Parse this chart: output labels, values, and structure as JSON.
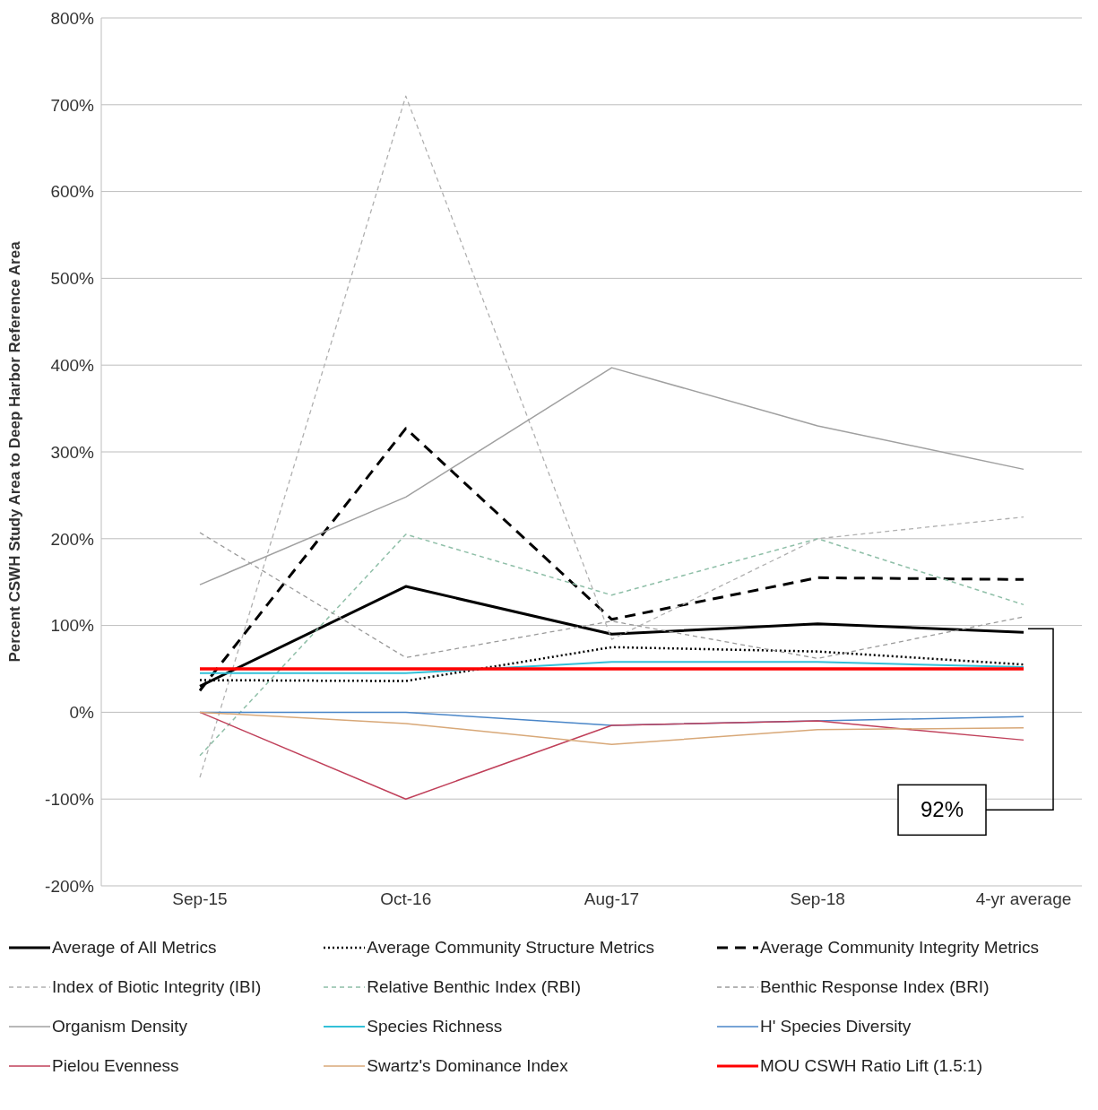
{
  "chart_data": {
    "type": "line",
    "ylabel": "Percent CSWH Study Area to Deep Harbor Reference Area",
    "categories": [
      "Sep-15",
      "Oct-16",
      "Aug-17",
      "Sep-18",
      "4-yr average"
    ],
    "ylim": [
      -200,
      800
    ],
    "yticks": [
      {
        "value": -200,
        "label": "-200%"
      },
      {
        "value": -100,
        "label": "-100%"
      },
      {
        "value": 0,
        "label": "0%"
      },
      {
        "value": 100,
        "label": "100%"
      },
      {
        "value": 200,
        "label": "200%"
      },
      {
        "value": 300,
        "label": "300%"
      },
      {
        "value": 400,
        "label": "400%"
      },
      {
        "value": 500,
        "label": "500%"
      },
      {
        "value": 600,
        "label": "600%"
      },
      {
        "value": 700,
        "label": "700%"
      },
      {
        "value": 800,
        "label": "800%"
      }
    ],
    "grid": "y",
    "legend": "bottom",
    "marker": "none",
    "series": [
      {
        "name": "Average of All Metrics",
        "color": "#000000",
        "line_style": "solid",
        "values": [
          30,
          145,
          90,
          102,
          92
        ]
      },
      {
        "name": "Average Community Structure Metrics",
        "color": "#000000",
        "line_style": "dotted",
        "values": [
          37,
          36,
          75,
          70,
          55
        ]
      },
      {
        "name": "Average Community Integrity Metrics",
        "color": "#000000",
        "line_style": "dashed",
        "values": [
          25,
          327,
          107,
          155,
          153
        ]
      },
      {
        "name": "Index of Biotic Integrity (IBI)",
        "color": "#b0b0b0",
        "line_style": "dashed",
        "values": [
          -75,
          710,
          84,
          200,
          225
        ]
      },
      {
        "name": "Relative Benthic Index (RBI)",
        "color": "#8fbfa8",
        "line_style": "dashed",
        "values": [
          -50,
          205,
          135,
          200,
          124
        ]
      },
      {
        "name": "Benthic Response Index (BRI)",
        "color": "#9a9a9a",
        "line_style": "dashed",
        "values": [
          207,
          63,
          105,
          62,
          110
        ]
      },
      {
        "name": "Organism Density",
        "color": "#a0a0a0",
        "line_style": "solid",
        "values": [
          147,
          248,
          397,
          330,
          280
        ]
      },
      {
        "name": "Species Richness",
        "color": "#33c0d8",
        "line_style": "solid",
        "values": [
          45,
          45,
          58,
          58,
          52
        ]
      },
      {
        "name": "H' Species Diversity",
        "color": "#4a86c8",
        "line_style": "solid",
        "values": [
          0,
          0,
          -15,
          -10,
          -5
        ]
      },
      {
        "name": "Pielou Evenness",
        "color": "#c0405a",
        "line_style": "solid",
        "values": [
          0,
          -100,
          -15,
          -10,
          -32
        ]
      },
      {
        "name": "Swartz's Dominance Index",
        "color": "#d8a878",
        "line_style": "solid",
        "values": [
          0,
          -13,
          -37,
          -20,
          -18
        ]
      },
      {
        "name": "MOU CSWH Ratio Lift (1.5:1)",
        "color": "#ff0000",
        "line_style": "solid",
        "values": [
          50,
          50,
          50,
          50,
          50
        ]
      }
    ],
    "annotations": [
      {
        "text": "92%",
        "x": "4-yr average",
        "y": 92
      }
    ]
  }
}
